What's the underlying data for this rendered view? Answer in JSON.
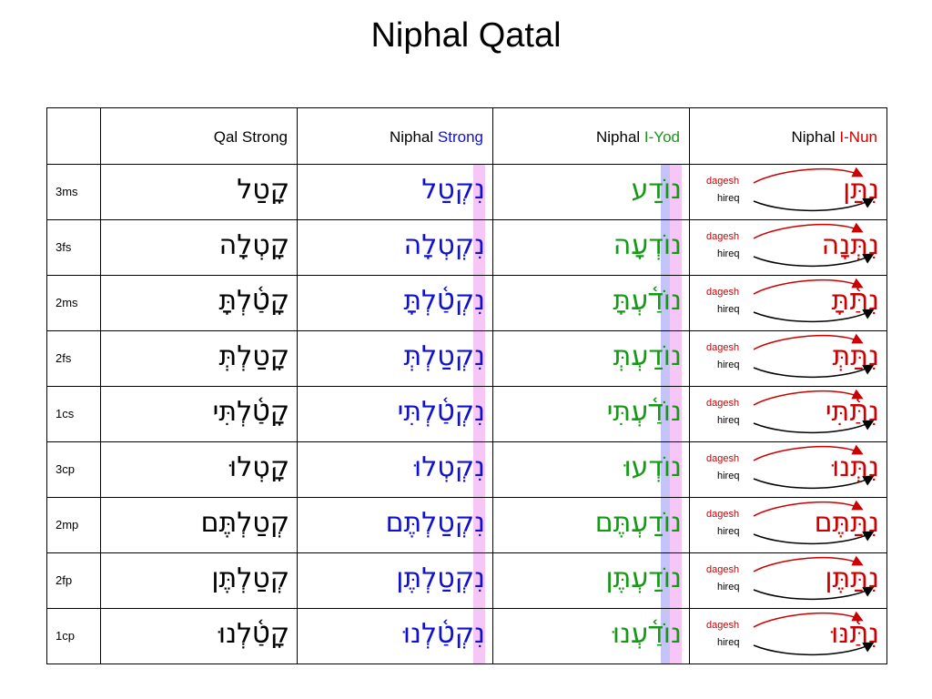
{
  "title": "Niphal Qatal",
  "headers": {
    "qal": "Qal Strong",
    "niphal_strong_a": "Niphal",
    "niphal_strong_b": "Strong",
    "niphal_iyod_a": "Niphal",
    "niphal_iyod_b": "I-Yod",
    "niphal_inun_a": "Niphal",
    "niphal_inun_b": "I-Nun"
  },
  "colors": {
    "blue": "#1010d0",
    "green": "#159a15",
    "red": "#cc0000",
    "pink": "#f6c6f6",
    "lavender": "#c4c4f8"
  },
  "rows": [
    {
      "label": "3ms",
      "qal": "קָטַל",
      "nstrong": "נִקְטַל",
      "niyod": "נוֹדַע",
      "ninun": "נִתַּן",
      "dagesh": "dagesh",
      "hireq": "hireq"
    },
    {
      "label": "3fs",
      "qal": "קָטְלָה",
      "nstrong": "נִקְטְלָה",
      "niyod": "נוֹדְעָה",
      "ninun": "נִתְּנָה",
      "dagesh": "dagesh",
      "hireq": "hireq"
    },
    {
      "label": "2ms",
      "qal": "קָטַ֫לְתָּ",
      "nstrong": "נִקְטַ֫לְתָּ",
      "niyod": "נוֹדַ֫עְתָּ",
      "ninun": "נִתַּ֫תָּ",
      "dagesh": "dagesh",
      "hireq": "hireq"
    },
    {
      "label": "2fs",
      "qal": "קָטַלְתְּ",
      "nstrong": "נִקְטַלְתְּ",
      "niyod": "נוֹדַעְתְּ",
      "ninun": "נִתַּתְּ",
      "dagesh": "dagesh",
      "hireq": "hireq"
    },
    {
      "label": "1cs",
      "qal": "קָטַ֫לְתִּי",
      "nstrong": "נִקְטַ֫לְתִּי",
      "niyod": "נוֹדַ֫עְתִּי",
      "ninun": "נִתַּ֫תִּי",
      "dagesh": "dagesh",
      "hireq": "hireq"
    },
    {
      "label": "3cp",
      "qal": "קָטְלוּ",
      "nstrong": "נִקְטְלוּ",
      "niyod": "נוֹדְעוּ",
      "ninun": "נִתְּנוּ",
      "dagesh": "dagesh",
      "hireq": "hireq"
    },
    {
      "label": "2mp",
      "qal": "קְטַלְתֶּם",
      "nstrong": "נִקְטַלְתֶּם",
      "niyod": "נוֹדַעְתֶּם",
      "ninun": "נִתַּתֶּם",
      "dagesh": "dagesh",
      "hireq": "hireq"
    },
    {
      "label": "2fp",
      "qal": "קְטַלְתֶּן",
      "nstrong": "נִקְטַלְתֶּן",
      "niyod": "נוֹדַעְתֶּן",
      "ninun": "נִתַּתֶּן",
      "dagesh": "dagesh",
      "hireq": "hireq"
    },
    {
      "label": "1cp",
      "qal": "קָטַ֫לְנוּ",
      "nstrong": "נִקְטַ֫לְנוּ",
      "niyod": "נוֹדַ֫עְנוּ",
      "ninun": "נִתַּ֫נּוּ",
      "dagesh": "dagesh",
      "hireq": "hireq"
    }
  ]
}
